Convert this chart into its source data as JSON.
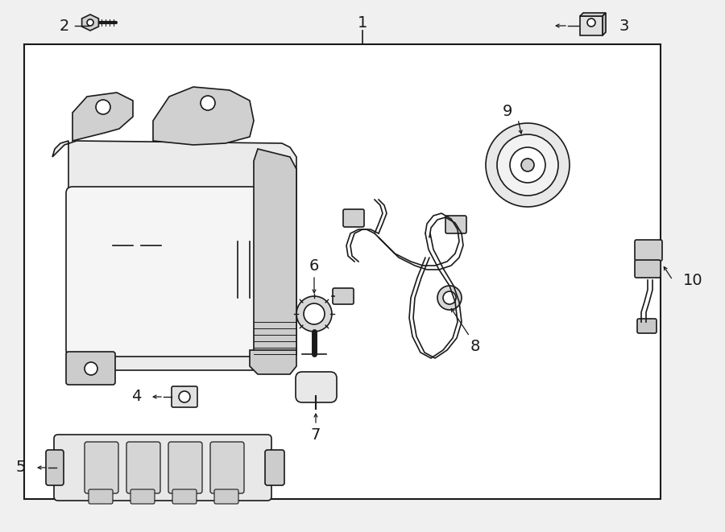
{
  "bg_color": "#f0f0f0",
  "box_color": "#ffffff",
  "line_color": "#1a1a1a",
  "figsize": [
    9.0,
    6.61
  ],
  "dpi": 100
}
